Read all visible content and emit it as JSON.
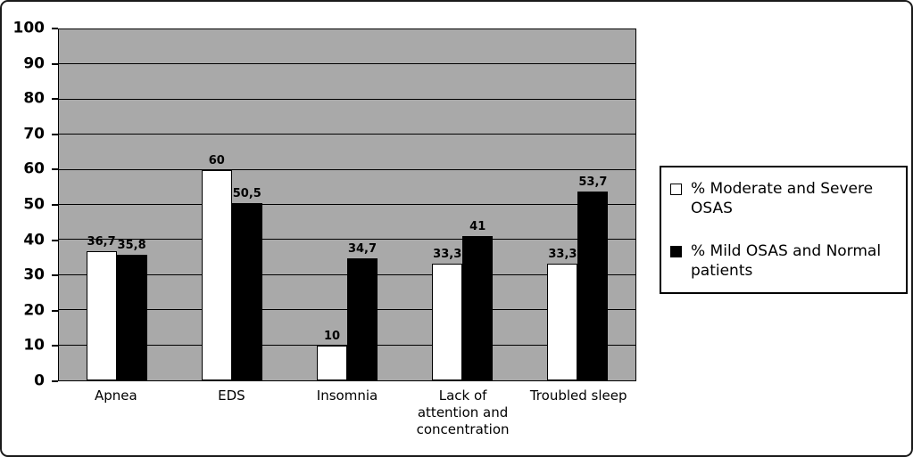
{
  "figure": {
    "background": "#ffffff",
    "plot_background": "#a9a9a9",
    "border_color": "#1a1a1a",
    "gridline_color": "#000000"
  },
  "chart_data": {
    "type": "bar",
    "title": "",
    "xlabel": "",
    "ylabel": "",
    "ylim": [
      0,
      100
    ],
    "yticks": [
      0,
      10,
      20,
      30,
      40,
      50,
      60,
      70,
      80,
      90,
      100
    ],
    "grid": true,
    "legend_position": "right",
    "categories": [
      "Apnea",
      "EDS",
      "Insomnia",
      "Lack of attention and concentration",
      "Troubled sleep"
    ],
    "series": [
      {
        "key": "moderate_severe_osas",
        "name": "% Moderate and Severe OSAS",
        "color": "#ffffff",
        "values": [
          36.7,
          60,
          10,
          33.3,
          33.3
        ],
        "value_labels": [
          "36,7",
          "60",
          "10",
          "33,3",
          "33,3"
        ]
      },
      {
        "key": "mild_osas_normal",
        "name": "% Mild OSAS and Normal patients",
        "color": "#000000",
        "values": [
          35.8,
          50.5,
          34.7,
          41,
          53.7
        ],
        "value_labels": [
          "35,8",
          "50,5",
          "34,7",
          "41",
          "53,7"
        ]
      }
    ]
  }
}
